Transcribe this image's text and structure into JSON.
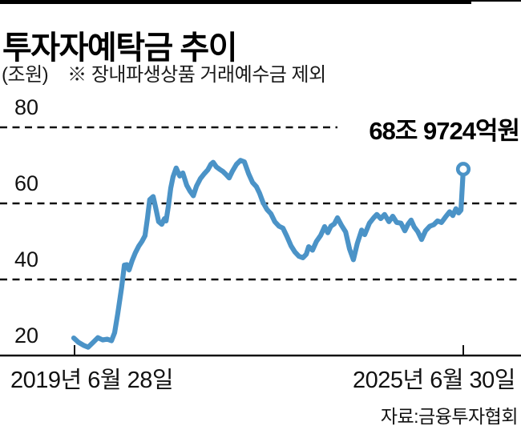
{
  "header": {
    "title": "투자자예탁금 추이",
    "unit_label": "(조원)",
    "note": "※ 장내파생상품 거래예수금 제외"
  },
  "annotation": {
    "latest_value_label": "68조 9724억원"
  },
  "x_axis": {
    "start_label": "2019년 6월 28일",
    "end_label": "2025년 6월 30일"
  },
  "source": "자료:금융투자협회",
  "colors": {
    "line": "#4b93c7",
    "axis": "#111111",
    "grid": "#111111",
    "marker_fill": "#ffffff",
    "text": "#000000"
  },
  "chart_data": {
    "type": "line",
    "title": "투자자예탁금 추이",
    "unit": "조원",
    "note": "장내파생상품 거래예수금 제외",
    "x_start_label": "2019년 6월 28일",
    "x_end_label": "2025년 6월 30일",
    "ylim": [
      20,
      80
    ],
    "yticks": [
      80,
      60,
      40,
      20
    ],
    "ytick_labels": [
      "80",
      "60",
      "40",
      "20"
    ],
    "grid": "horizontal-dashed",
    "legend": "none",
    "last_point_label": "68조 9724억원",
    "last_point_value": 68.9724,
    "points": [
      [
        0.0,
        24.6
      ],
      [
        0.012,
        23.5
      ],
      [
        0.025,
        22.7
      ],
      [
        0.037,
        22.2
      ],
      [
        0.049,
        23.4
      ],
      [
        0.062,
        24.7
      ],
      [
        0.074,
        24.1
      ],
      [
        0.086,
        24.3
      ],
      [
        0.097,
        23.9
      ],
      [
        0.105,
        26.0
      ],
      [
        0.113,
        31.0
      ],
      [
        0.123,
        38.0
      ],
      [
        0.13,
        43.8
      ],
      [
        0.136,
        43.9
      ],
      [
        0.142,
        42.5
      ],
      [
        0.15,
        45.0
      ],
      [
        0.158,
        47.0
      ],
      [
        0.167,
        48.8
      ],
      [
        0.175,
        50.0
      ],
      [
        0.183,
        51.5
      ],
      [
        0.189,
        56.0
      ],
      [
        0.195,
        61.0
      ],
      [
        0.204,
        61.8
      ],
      [
        0.21,
        59.0
      ],
      [
        0.218,
        55.2
      ],
      [
        0.226,
        54.5
      ],
      [
        0.233,
        56.0
      ],
      [
        0.237,
        55.4
      ],
      [
        0.243,
        59.3
      ],
      [
        0.249,
        64.0
      ],
      [
        0.255,
        67.0
      ],
      [
        0.263,
        69.3
      ],
      [
        0.272,
        67.2
      ],
      [
        0.28,
        68.0
      ],
      [
        0.29,
        64.8
      ],
      [
        0.298,
        63.3
      ],
      [
        0.307,
        62.0
      ],
      [
        0.315,
        64.5
      ],
      [
        0.325,
        66.5
      ],
      [
        0.335,
        67.8
      ],
      [
        0.344,
        68.8
      ],
      [
        0.352,
        70.3
      ],
      [
        0.358,
        70.8
      ],
      [
        0.366,
        69.6
      ],
      [
        0.374,
        69.0
      ],
      [
        0.383,
        68.4
      ],
      [
        0.391,
        67.6
      ],
      [
        0.399,
        66.7
      ],
      [
        0.407,
        68.4
      ],
      [
        0.418,
        70.3
      ],
      [
        0.428,
        71.3
      ],
      [
        0.438,
        70.9
      ],
      [
        0.449,
        67.8
      ],
      [
        0.459,
        65.5
      ],
      [
        0.469,
        64.4
      ],
      [
        0.477,
        62.7
      ],
      [
        0.486,
        60.2
      ],
      [
        0.496,
        58.4
      ],
      [
        0.506,
        57.3
      ],
      [
        0.516,
        55.2
      ],
      [
        0.527,
        54.0
      ],
      [
        0.537,
        53.5
      ],
      [
        0.547,
        51.4
      ],
      [
        0.558,
        48.8
      ],
      [
        0.568,
        47.2
      ],
      [
        0.578,
        46.1
      ],
      [
        0.588,
        45.7
      ],
      [
        0.597,
        46.6
      ],
      [
        0.603,
        48.6
      ],
      [
        0.613,
        47.7
      ],
      [
        0.623,
        50.0
      ],
      [
        0.634,
        51.6
      ],
      [
        0.644,
        53.9
      ],
      [
        0.652,
        52.3
      ],
      [
        0.66,
        54.0
      ],
      [
        0.669,
        54.6
      ],
      [
        0.677,
        56.2
      ],
      [
        0.687,
        54.3
      ],
      [
        0.698,
        52.5
      ],
      [
        0.708,
        48.0
      ],
      [
        0.718,
        45.2
      ],
      [
        0.728,
        49.5
      ],
      [
        0.739,
        53.0
      ],
      [
        0.747,
        51.8
      ],
      [
        0.759,
        54.8
      ],
      [
        0.77,
        56.2
      ],
      [
        0.778,
        57.1
      ],
      [
        0.788,
        56.0
      ],
      [
        0.798,
        57.1
      ],
      [
        0.809,
        55.2
      ],
      [
        0.819,
        56.6
      ],
      [
        0.829,
        55.0
      ],
      [
        0.84,
        54.8
      ],
      [
        0.85,
        52.8
      ],
      [
        0.858,
        54.5
      ],
      [
        0.866,
        55.6
      ],
      [
        0.874,
        53.8
      ],
      [
        0.883,
        52.6
      ],
      [
        0.893,
        50.5
      ],
      [
        0.903,
        52.8
      ],
      [
        0.914,
        54.0
      ],
      [
        0.924,
        54.4
      ],
      [
        0.934,
        55.4
      ],
      [
        0.944,
        55.0
      ],
      [
        0.955,
        56.5
      ],
      [
        0.965,
        57.8
      ],
      [
        0.973,
        56.8
      ],
      [
        0.981,
        58.6
      ],
      [
        0.988,
        57.5
      ],
      [
        0.994,
        58.2
      ],
      [
        1.0,
        69.0
      ]
    ]
  }
}
